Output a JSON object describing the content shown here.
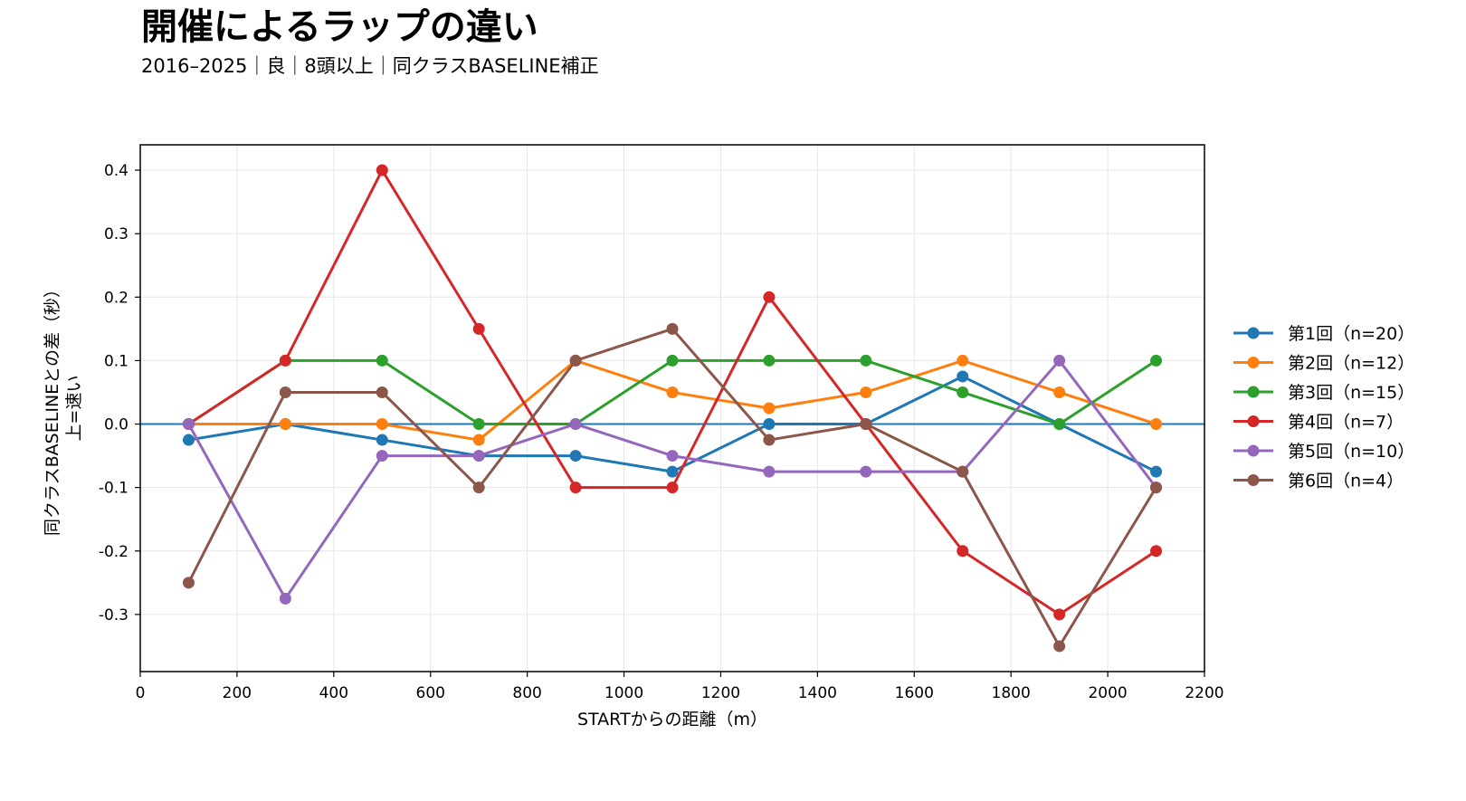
{
  "chart_data": {
    "type": "line",
    "title": "開催によるラップの違い",
    "subtitle": "2016–2025｜良｜8頭以上｜同クラスBASELINE補正",
    "xlabel": "STARTからの距離（m）",
    "ylabel_lines": [
      "同クラスBASELINEとの差（秒）",
      "上=速い"
    ],
    "xlim": [
      0,
      2200
    ],
    "ylim": [
      -0.39,
      0.44
    ],
    "xticks": [
      0,
      200,
      400,
      600,
      800,
      1000,
      1200,
      1400,
      1600,
      1800,
      2000,
      2200
    ],
    "yticks": [
      -0.3,
      -0.2,
      -0.1,
      0.0,
      0.1,
      0.2,
      0.3,
      0.4
    ],
    "ytick_labels": [
      "-0.3",
      "-0.2",
      "-0.1",
      "0.0",
      "0.1",
      "0.2",
      "0.3",
      "0.4"
    ],
    "grid": true,
    "reference_line": {
      "y": 0.0,
      "color": "#1f77b4"
    },
    "legend_position": "right",
    "x": [
      100,
      300,
      500,
      700,
      900,
      1100,
      1300,
      1500,
      1700,
      1900,
      2100
    ],
    "series": [
      {
        "name": "第1回（n=20）",
        "color": "#1f77b4",
        "values": [
          -0.025,
          0.0,
          -0.025,
          -0.05,
          -0.05,
          -0.075,
          0.0,
          0.0,
          0.075,
          0.0,
          -0.075
        ]
      },
      {
        "name": "第2回（n=12）",
        "color": "#ff7f0e",
        "values": [
          0.0,
          0.0,
          0.0,
          -0.025,
          0.1,
          0.05,
          0.025,
          0.05,
          0.1,
          0.05,
          0.0
        ]
      },
      {
        "name": "第3回（n=15）",
        "color": "#2ca02c",
        "values": [
          0.0,
          0.1,
          0.1,
          0.0,
          0.0,
          0.1,
          0.1,
          0.1,
          0.05,
          0.0,
          0.1
        ]
      },
      {
        "name": "第4回（n=7）",
        "color": "#d62728",
        "values": [
          0.0,
          0.1,
          0.4,
          0.15,
          -0.1,
          -0.1,
          0.2,
          0.0,
          -0.2,
          -0.3,
          -0.2
        ]
      },
      {
        "name": "第5回（n=10）",
        "color": "#9467bd",
        "values": [
          0.0,
          -0.275,
          -0.05,
          -0.05,
          0.0,
          -0.05,
          -0.075,
          -0.075,
          -0.075,
          0.1,
          -0.1
        ]
      },
      {
        "name": "第6回（n=4）",
        "color": "#8c564b",
        "values": [
          -0.25,
          0.05,
          0.05,
          -0.1,
          0.1,
          0.15,
          -0.025,
          0.0,
          -0.075,
          -0.35,
          -0.1
        ]
      }
    ]
  }
}
